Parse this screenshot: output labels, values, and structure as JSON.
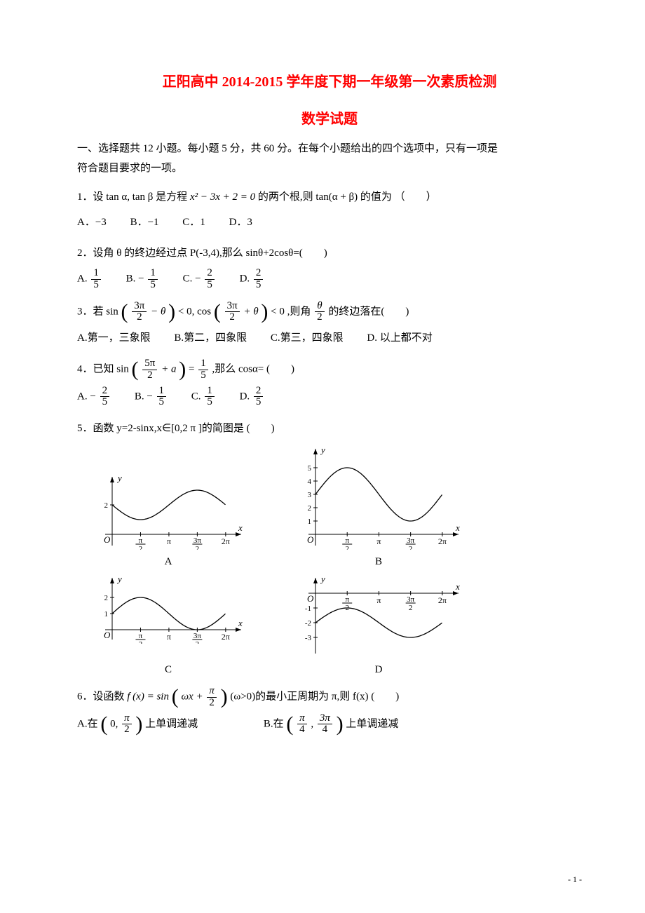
{
  "title_main": "正阳高中 2014-2015 学年度下期一年级第一次素质检测",
  "title_sub": "数学试题",
  "instr1": "一、选择题共 12 小题。每小题 5 分，共 60 分。在每个小题给出的四个选项中，只有一项是",
  "instr2": "符合题目要求的一项。",
  "q1_pre": "1．设 ",
  "q1_a": "tan α, tan β",
  "q1_mid1": " 是方程 ",
  "q1_eq": "x² − 3x + 2 = 0",
  "q1_mid2": " 的两个根,则 ",
  "q1_b": "tan(α + β)",
  "q1_post": " 的值为 （　　）",
  "q1A_l": "A．",
  "q1A_v": "−3",
  "q1B_l": "B．",
  "q1B_v": "−1",
  "q1C_l": "C．",
  "q1C_v": "1",
  "q1D_l": "D．",
  "q1D_v": "3",
  "q2": "2．设角 θ 的终边经过点 P(-3,4),那么 sinθ+2cosθ=(　　)",
  "q2A_l": "A.",
  "q2A_num": "1",
  "q2A_den": "5",
  "q2B_l": "B.",
  "q2B_sgn": "−",
  "q2B_num": "1",
  "q2B_den": "5",
  "q2C_l": "C.",
  "q2C_sgn": "−",
  "q2C_num": "2",
  "q2C_den": "5",
  "q2D_l": "D.",
  "q2D_num": "2",
  "q2D_den": "5",
  "q3_pre": "3．若 ",
  "q3_sin": "sin",
  "q3_cos": "cos",
  "q3_f1_num": "3π",
  "q3_f1_den": "2",
  "q3_minus": "− θ",
  "q3_lt1": " < 0, ",
  "q3_plus": "+ θ",
  "q3_lt2": " < 0",
  "q3_mid": " ,则角 ",
  "q3_f2_num": "θ",
  "q3_f2_den": "2",
  "q3_post": " 的终边落在(　　)",
  "q3A": "A.第一，三象限",
  "q3B": "B.第二，四象限",
  "q3C": "C.第三，四象限",
  "q3D": "D. 以上都不对",
  "q4_pre": "4．已知 ",
  "q4_sin": "sin",
  "q4_f_num": "5π",
  "q4_f_den": "2",
  "q4_plus": "+ a",
  "q4_eq": " = ",
  "q4_r_num": "1",
  "q4_r_den": "5",
  "q4_post": " ,那么 cosα=  (　　)",
  "q4A_l": "A.",
  "q4A_sgn": "−",
  "q4A_num": "2",
  "q4A_den": "5",
  "q4B_l": "B.",
  "q4B_sgn": "−",
  "q4B_num": "1",
  "q4B_den": "5",
  "q4C_l": "C.",
  "q4C_num": "1",
  "q4C_den": "5",
  "q4D_l": "D.",
  "q4D_num": "2",
  "q4D_den": "5",
  "q5": "5．函数 y=2-sinx,x∈[0,2 π ]的简图是  (　　)",
  "capA": "A",
  "capB": "B",
  "capC": "C",
  "capD": "D",
  "chartA": {
    "type": "line",
    "xlim": [
      0,
      6.6
    ],
    "ylim": [
      0,
      3
    ],
    "yticks": [
      2
    ],
    "xticks_pi": [
      "π/2",
      "π",
      "3π/2",
      "2π"
    ],
    "xtick_pos": [
      1.5708,
      3.1416,
      4.7124,
      6.2832
    ],
    "curve": "2 - sin(x)",
    "stroke": "#000000",
    "bg": "#ffffff",
    "frac_ticks": [
      {
        "num": "π",
        "den": "2",
        "pos": 1.5708
      },
      {
        "num": "3π",
        "den": "2",
        "pos": 4.7124
      }
    ],
    "plain_ticks": [
      {
        "label": "π",
        "pos": 3.1416
      },
      {
        "label": "2π",
        "pos": 6.2832
      }
    ]
  },
  "chartB": {
    "type": "line",
    "xlim": [
      0,
      6.6
    ],
    "ylim": [
      0,
      6
    ],
    "yticks": [
      1,
      2,
      3,
      4,
      5
    ],
    "curve": "3 + 2 sin(x)",
    "stroke": "#000000",
    "bg": "#ffffff",
    "frac_ticks": [
      {
        "num": "π",
        "den": "2",
        "pos": 1.5708
      },
      {
        "num": "3π",
        "den": "2",
        "pos": 4.7124
      }
    ],
    "plain_ticks": [
      {
        "label": "π",
        "pos": 3.1416
      },
      {
        "label": "2π",
        "pos": 6.2832
      }
    ]
  },
  "chartC": {
    "type": "line",
    "xlim": [
      0,
      6.6
    ],
    "ylim": [
      0,
      3
    ],
    "yticks": [
      1,
      2
    ],
    "curve": "1 + sin(x)",
    "stroke": "#000000",
    "bg": "#ffffff",
    "frac_ticks": [
      {
        "num": "π",
        "den": "2",
        "pos": 1.5708
      },
      {
        "num": "3π",
        "den": "2",
        "pos": 4.7124
      }
    ],
    "plain_ticks": [
      {
        "label": "π",
        "pos": 3.1416
      },
      {
        "label": "2π",
        "pos": 6.2832
      }
    ]
  },
  "chartD": {
    "type": "line",
    "xlim": [
      0,
      6.6
    ],
    "ylim": [
      -4,
      1
    ],
    "yticks": [
      -1,
      -2,
      -3
    ],
    "curve": "-2 + sin(x)",
    "stroke": "#000000",
    "bg": "#ffffff",
    "frac_ticks": [
      {
        "num": "π",
        "den": "2",
        "pos": 1.5708
      },
      {
        "num": "3π",
        "den": "2",
        "pos": 4.7124
      }
    ],
    "plain_ticks": [
      {
        "label": "π",
        "pos": 3.1416
      },
      {
        "label": "2π",
        "pos": 6.2832
      }
    ]
  },
  "q6_pre": "6．设函数 ",
  "q6_fx": "f (x) = sin",
  "q6_arg1": "ωx + ",
  "q6_fn": "π",
  "q6_fd": "2",
  "q6_post": "(ω>0)的最小正周期为 π,则 f(x)  (　　)",
  "q6A_l": "A.在 ",
  "q6A_a": "0, ",
  "q6A_num": "π",
  "q6A_den": "2",
  "q6A_post": " 上单调递减",
  "q6B_l": "B.在 ",
  "q6B_n1": "π",
  "q6B_d1": "4",
  "q6B_c": ", ",
  "q6B_n2": "3π",
  "q6B_d2": "4",
  "q6B_post": " 上单调递减",
  "footer": "- 1 -"
}
